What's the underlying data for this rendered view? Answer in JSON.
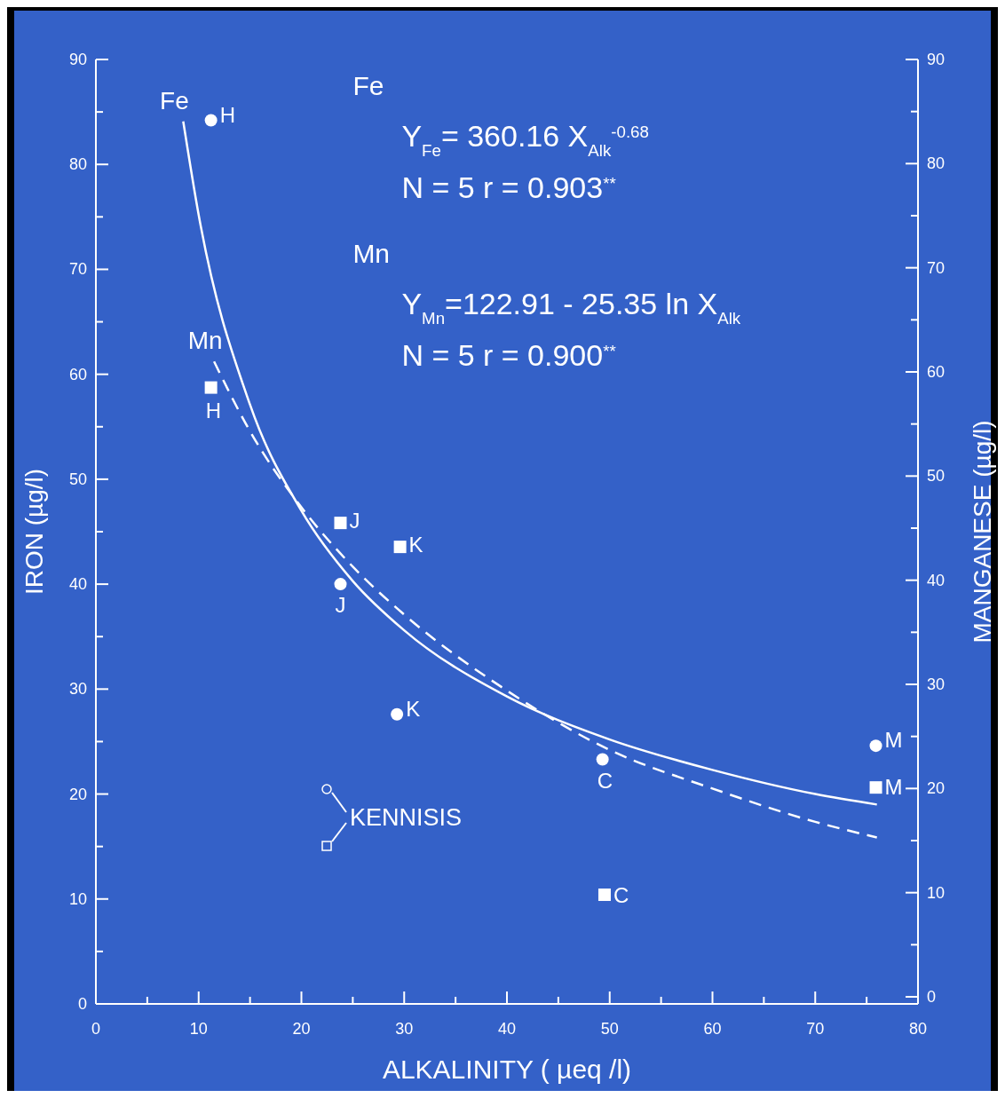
{
  "chart_data": {
    "type": "scatter",
    "xlabel": "ALKALINITY ( µeq /l)",
    "ylabel": "IRON (µg/l)",
    "y2label": "MANGANESE (µg/l)",
    "xlim": [
      0,
      80
    ],
    "ylim": [
      0,
      90
    ],
    "y2lim": [
      0,
      90
    ],
    "xticks": [
      0,
      {
        "value": 5,
        "label": null
      },
      10,
      {
        "value": 15,
        "label": null
      },
      20,
      {
        "value": 25,
        "label": null
      },
      30,
      {
        "value": 35,
        "label": null
      },
      40,
      {
        "value": 45,
        "label": null
      },
      50,
      {
        "value": 55,
        "label": null
      },
      60,
      {
        "value": 65,
        "label": null
      },
      70,
      {
        "value": 75,
        "label": null
      },
      80
    ],
    "yticks": [
      0,
      {
        "value": 5,
        "label": null
      },
      10,
      {
        "value": 15,
        "label": null
      },
      20,
      {
        "value": 25,
        "label": null
      },
      30,
      {
        "value": 35,
        "label": null
      },
      40,
      {
        "value": 45,
        "label": null
      },
      50,
      {
        "value": 55,
        "label": null
      },
      60,
      {
        "value": 65,
        "label": null
      },
      70,
      {
        "value": 75,
        "label": null
      },
      80,
      {
        "value": 85,
        "label": null
      },
      90
    ],
    "y2ticks": [
      0,
      {
        "value": 5,
        "label": null
      },
      10,
      {
        "value": 15,
        "label": null
      },
      20,
      {
        "value": 25,
        "label": null
      },
      30,
      {
        "value": 35,
        "label": null
      },
      40,
      {
        "value": 45,
        "label": null
      },
      50,
      {
        "value": 55,
        "label": null
      },
      60,
      {
        "value": 65,
        "label": null
      },
      70,
      {
        "value": 75,
        "label": null
      },
      80,
      {
        "value": 85,
        "label": null
      },
      90
    ],
    "grid": false,
    "series": [
      {
        "marker": "circle",
        "color": "#ffffff",
        "x": [
          11.2,
          23.8,
          29.3,
          49.3,
          75.9
        ],
        "values": [
          84.2,
          40.0,
          27.6,
          23.3,
          24.6
        ]
      },
      {
        "marker": "square",
        "axis": "y2",
        "color": "#ffffff",
        "x": [
          11.2,
          23.8,
          29.6,
          49.5,
          75.9
        ],
        "values": [
          58.5,
          45.5,
          43.2,
          9.8,
          20.1
        ]
      },
      {
        "type": "line",
        "name": "Fe",
        "marker": "none",
        "line_style": "solid",
        "color": "#ffffff",
        "x": [
          8.5,
          10,
          15,
          20,
          25,
          30,
          40,
          50,
          60,
          70,
          76
        ],
        "values": [
          84.1,
          75.2,
          57.1,
          47.0,
          40.3,
          35.6,
          29.3,
          25.2,
          22.3,
          20.0,
          19.0
        ]
      },
      {
        "type": "line",
        "name": "Mn",
        "marker": "none",
        "line_style": "dashed",
        "axis": "y2",
        "color": "#ffffff",
        "x": [
          11.5,
          15,
          20,
          25,
          30,
          40,
          50,
          60,
          70,
          76
        ],
        "values": [
          61.0,
          54.3,
          47.0,
          41.3,
          36.7,
          29.4,
          23.7,
          20.0,
          16.8,
          15.3
        ]
      }
    ],
    "annotations": [
      "Fe",
      "Y$_{Fe}$= 360.16 X$_{Alk}$$^{-0.68}$",
      "N = 5     r = 0.903$^{**}$",
      "Mn",
      "Y$_{Mn}$=122.91 - 25.35 ln X$_{Alk}$",
      "N = 5     r = 0.900$^{**}$",
      "KENNISIS",
      {
        "text": "H",
        "x": 11.2,
        "y": 84.2
      },
      {
        "text": "J",
        "x": 23.8,
        "y": 40.0
      },
      {
        "text": "K",
        "x": 29.3,
        "y": 27.6
      },
      {
        "text": "C",
        "x": 49.3,
        "y": 23.3
      },
      {
        "text": "M",
        "x": 75.9,
        "y": 24.6
      },
      {
        "text": "H",
        "x": 11.2,
        "y": 58.5
      },
      {
        "text": "J",
        "x": 23.8,
        "y": 45.5
      },
      {
        "text": "K",
        "x": 29.6,
        "y": 43.2
      },
      {
        "text": "C",
        "x": 49.5,
        "y": 9.8
      },
      {
        "text": "M",
        "x": 75.9,
        "y": 20.1
      }
    ]
  }
}
